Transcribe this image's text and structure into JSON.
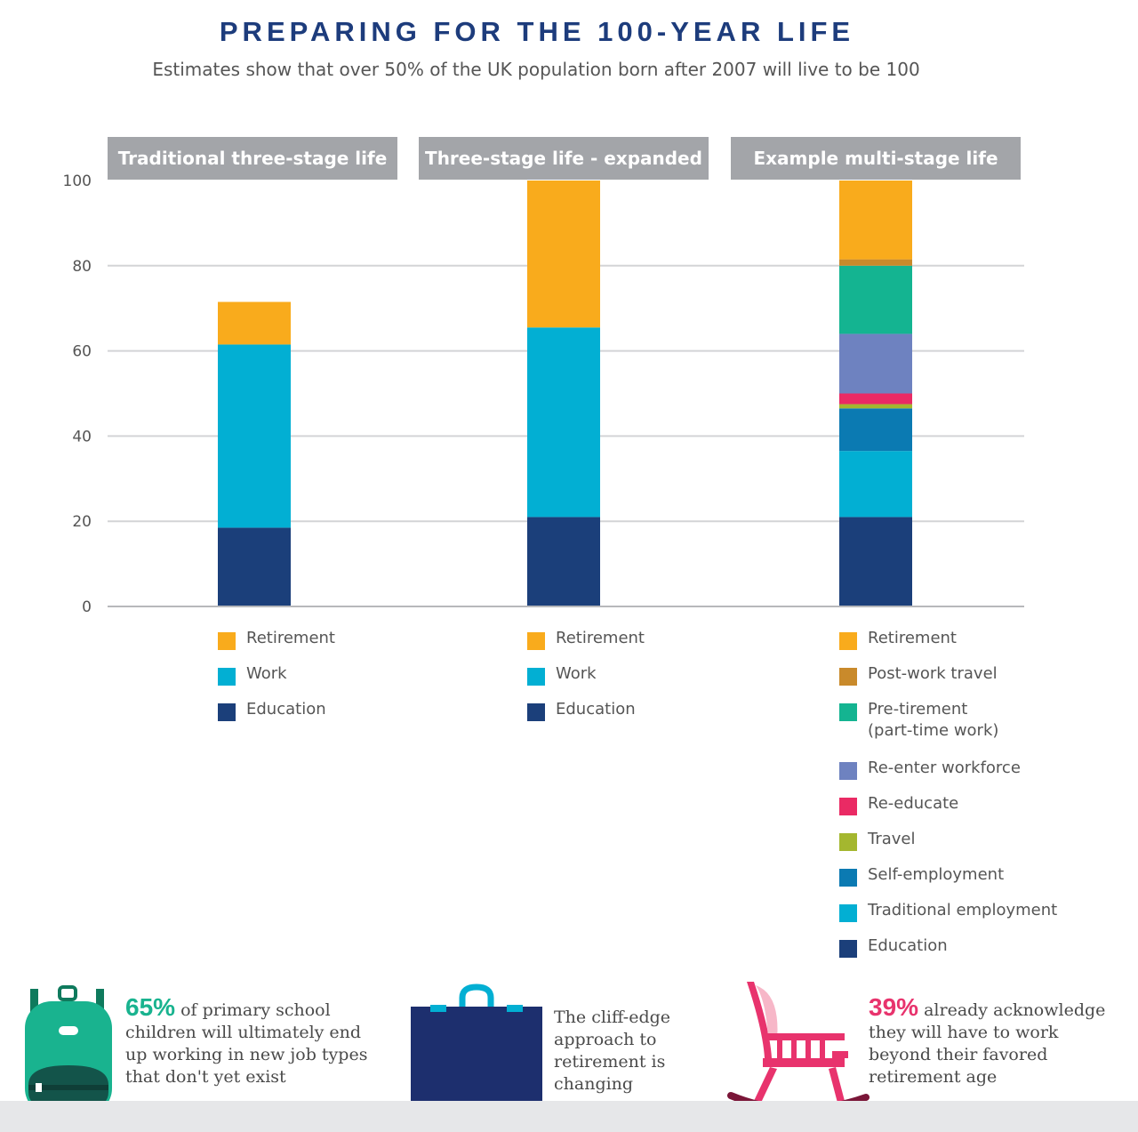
{
  "title": "PREPARING FOR THE 100-YEAR LIFE",
  "subtitle": "Estimates show that over 50% of the UK population born after 2007 will live to be 100",
  "colors": {
    "Retirement": "#f9ab1c",
    "Post-work travel": "#c98a2b",
    "Pre-tirement (part-time work)": "#14b491",
    "Re-enter workforce": "#6e82c0",
    "Re-educate": "#ea2a64",
    "Travel": "#a4b72f",
    "Self-employment": "#0b7ab2",
    "Traditional employment": "#02afd3",
    "Work": "#02afd3",
    "Education": "#1b3f7a"
  },
  "chart_data": {
    "type": "bar",
    "stacked": true,
    "ylim": [
      0,
      100
    ],
    "yticks": [
      0,
      20,
      40,
      60,
      80,
      100
    ],
    "grid": true,
    "panels": [
      {
        "header": "Traditional three-stage life",
        "segments": [
          {
            "name": "Education",
            "value": 18.5
          },
          {
            "name": "Work",
            "value": 43
          },
          {
            "name": "Retirement",
            "value": 10
          }
        ],
        "legend": [
          {
            "label": "Retirement",
            "key": "Retirement"
          },
          {
            "label": "Work",
            "key": "Work"
          },
          {
            "label": "Education",
            "key": "Education"
          }
        ]
      },
      {
        "header": "Three-stage life - expanded",
        "segments": [
          {
            "name": "Education",
            "value": 21
          },
          {
            "name": "Work",
            "value": 44.5
          },
          {
            "name": "Retirement",
            "value": 34.5
          }
        ],
        "legend": [
          {
            "label": "Retirement",
            "key": "Retirement"
          },
          {
            "label": "Work",
            "key": "Work"
          },
          {
            "label": "Education",
            "key": "Education"
          }
        ]
      },
      {
        "header": "Example multi-stage life",
        "segments": [
          {
            "name": "Education",
            "value": 21
          },
          {
            "name": "Traditional employment",
            "value": 15.5
          },
          {
            "name": "Self-employment",
            "value": 10
          },
          {
            "name": "Travel",
            "value": 1
          },
          {
            "name": "Re-educate",
            "value": 2.5
          },
          {
            "name": "Re-enter workforce",
            "value": 14
          },
          {
            "name": "Pre-tirement (part-time work)",
            "value": 16
          },
          {
            "name": "Post-work travel",
            "value": 1.5
          },
          {
            "name": "Retirement",
            "value": 18.5
          }
        ],
        "legend": [
          {
            "label": "Retirement",
            "key": "Retirement"
          },
          {
            "label": "Post-work travel",
            "key": "Post-work travel"
          },
          {
            "label": "Pre-tirement\n(part-time work)",
            "key": "Pre-tirement (part-time work)"
          },
          {
            "label": "Re-enter workforce",
            "key": "Re-enter workforce"
          },
          {
            "label": "Re-educate",
            "key": "Re-educate"
          },
          {
            "label": "Travel",
            "key": "Travel"
          },
          {
            "label": "Self-employment",
            "key": "Self-employment"
          },
          {
            "label": "Traditional employment",
            "key": "Traditional employment"
          },
          {
            "label": "Education",
            "key": "Education"
          }
        ]
      }
    ]
  },
  "facts": [
    {
      "pct": "65%",
      "text": " of primary school children will ultimately end up working in new job types that don't yet exist",
      "color": "#19b38f"
    },
    {
      "text": "The cliff-edge approach to retirement is changing"
    },
    {
      "pct": "39%",
      "text": " already acknowledge they will have to work beyond their favored retirement age",
      "color": "#e8336d"
    }
  ]
}
